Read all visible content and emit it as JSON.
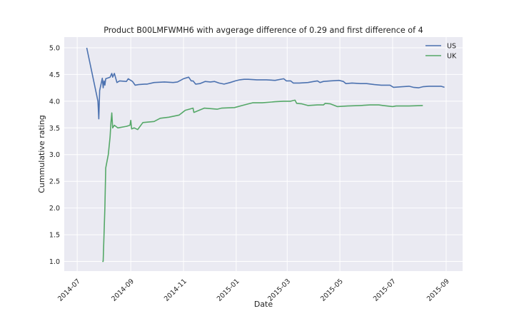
{
  "chart_data": {
    "type": "line",
    "title": "Product B00LMFWMH6 with avgerage difference of 0.29 and first difference of 4",
    "xlabel": "Date",
    "ylabel": "Cummulative rating",
    "xlim": [
      "2014-06-16",
      "2015-09-20"
    ],
    "ylim": [
      0.82,
      5.2
    ],
    "grid": true,
    "style": "seaborn-darkgrid",
    "legend_position": "top-right",
    "x_ticks": [
      "2014-07-01",
      "2014-09-01",
      "2014-11-01",
      "2015-01-01",
      "2015-03-01",
      "2015-05-01",
      "2015-07-01",
      "2015-09-01"
    ],
    "x_tick_labels": [
      "2014-07",
      "2014-09",
      "2014-11",
      "2015-01",
      "2015-03",
      "2015-05",
      "2015-07",
      "2015-09"
    ],
    "y_ticks": [
      1.0,
      1.5,
      2.0,
      2.5,
      3.0,
      3.5,
      4.0,
      4.5,
      5.0
    ],
    "y_tick_labels": [
      "1.0",
      "1.5",
      "2.0",
      "2.5",
      "3.0",
      "3.5",
      "4.0",
      "4.5",
      "5.0"
    ],
    "colors": {
      "background": "#eaeaf2",
      "grid": "#ffffff",
      "US": "#4c72b0",
      "UK": "#55a868"
    },
    "series": [
      {
        "name": "US",
        "color": "#4c72b0",
        "points": [
          [
            "2014-07-12",
            5.0
          ],
          [
            "2014-07-25",
            4.0
          ],
          [
            "2014-07-26",
            3.67
          ],
          [
            "2014-07-27",
            4.2
          ],
          [
            "2014-07-30",
            4.43
          ],
          [
            "2014-07-31",
            4.25
          ],
          [
            "2014-08-01",
            4.38
          ],
          [
            "2014-08-02",
            4.3
          ],
          [
            "2014-08-03",
            4.42
          ],
          [
            "2014-08-08",
            4.45
          ],
          [
            "2014-08-10",
            4.52
          ],
          [
            "2014-08-11",
            4.45
          ],
          [
            "2014-08-13",
            4.52
          ],
          [
            "2014-08-16",
            4.35
          ],
          [
            "2014-08-19",
            4.38
          ],
          [
            "2014-08-27",
            4.37
          ],
          [
            "2014-08-29",
            4.42
          ],
          [
            "2014-09-03",
            4.37
          ],
          [
            "2014-09-06",
            4.3
          ],
          [
            "2014-09-10",
            4.31
          ],
          [
            "2014-09-17",
            4.32
          ],
          [
            "2014-09-20",
            4.32
          ],
          [
            "2014-09-28",
            4.35
          ],
          [
            "2014-10-10",
            4.36
          ],
          [
            "2014-10-20",
            4.35
          ],
          [
            "2014-10-25",
            4.36
          ],
          [
            "2014-11-01",
            4.42
          ],
          [
            "2014-11-07",
            4.45
          ],
          [
            "2014-11-10",
            4.38
          ],
          [
            "2014-11-12",
            4.38
          ],
          [
            "2014-11-15",
            4.32
          ],
          [
            "2014-11-20",
            4.33
          ],
          [
            "2014-11-26",
            4.37
          ],
          [
            "2014-12-02",
            4.36
          ],
          [
            "2014-12-07",
            4.37
          ],
          [
            "2014-12-12",
            4.34
          ],
          [
            "2014-12-18",
            4.32
          ],
          [
            "2014-12-25",
            4.35
          ],
          [
            "2014-12-31",
            4.38
          ],
          [
            "2015-01-05",
            4.4
          ],
          [
            "2015-01-10",
            4.41
          ],
          [
            "2015-01-15",
            4.41
          ],
          [
            "2015-01-25",
            4.4
          ],
          [
            "2015-02-05",
            4.4
          ],
          [
            "2015-02-15",
            4.39
          ],
          [
            "2015-02-25",
            4.42
          ],
          [
            "2015-02-28",
            4.38
          ],
          [
            "2015-03-05",
            4.38
          ],
          [
            "2015-03-08",
            4.34
          ],
          [
            "2015-03-15",
            4.34
          ],
          [
            "2015-03-25",
            4.35
          ],
          [
            "2015-04-01",
            4.37
          ],
          [
            "2015-04-05",
            4.38
          ],
          [
            "2015-04-08",
            4.35
          ],
          [
            "2015-04-12",
            4.37
          ],
          [
            "2015-04-20",
            4.38
          ],
          [
            "2015-04-30",
            4.39
          ],
          [
            "2015-05-05",
            4.37
          ],
          [
            "2015-05-08",
            4.33
          ],
          [
            "2015-05-15",
            4.34
          ],
          [
            "2015-05-25",
            4.33
          ],
          [
            "2015-06-01",
            4.33
          ],
          [
            "2015-06-10",
            4.31
          ],
          [
            "2015-06-18",
            4.3
          ],
          [
            "2015-06-28",
            4.3
          ],
          [
            "2015-07-02",
            4.26
          ],
          [
            "2015-07-12",
            4.27
          ],
          [
            "2015-07-20",
            4.28
          ],
          [
            "2015-07-25",
            4.26
          ],
          [
            "2015-07-31",
            4.25
          ],
          [
            "2015-08-05",
            4.27
          ],
          [
            "2015-08-12",
            4.28
          ],
          [
            "2015-08-20",
            4.28
          ],
          [
            "2015-08-26",
            4.28
          ],
          [
            "2015-08-30",
            4.26
          ]
        ]
      },
      {
        "name": "UK",
        "color": "#55a868",
        "points": [
          [
            "2014-07-30",
            1.0
          ],
          [
            "2014-07-31",
            1.0
          ],
          [
            "2014-08-01",
            1.5
          ],
          [
            "2014-08-02",
            2.0
          ],
          [
            "2014-08-03",
            2.75
          ],
          [
            "2014-08-06",
            3.0
          ],
          [
            "2014-08-08",
            3.33
          ],
          [
            "2014-08-09",
            3.6
          ],
          [
            "2014-08-10",
            3.78
          ],
          [
            "2014-08-11",
            3.5
          ],
          [
            "2014-08-13",
            3.55
          ],
          [
            "2014-08-17",
            3.5
          ],
          [
            "2014-08-27",
            3.53
          ],
          [
            "2014-08-31",
            3.55
          ],
          [
            "2014-09-01",
            3.64
          ],
          [
            "2014-09-02",
            3.48
          ],
          [
            "2014-09-05",
            3.5
          ],
          [
            "2014-09-09",
            3.47
          ],
          [
            "2014-09-15",
            3.6
          ],
          [
            "2014-09-28",
            3.62
          ],
          [
            "2014-10-05",
            3.68
          ],
          [
            "2014-10-15",
            3.7
          ],
          [
            "2014-10-27",
            3.74
          ],
          [
            "2014-11-03",
            3.83
          ],
          [
            "2014-11-12",
            3.87
          ],
          [
            "2014-11-13",
            3.79
          ],
          [
            "2014-11-25",
            3.87
          ],
          [
            "2014-12-10",
            3.85
          ],
          [
            "2014-12-15",
            3.87
          ],
          [
            "2014-12-30",
            3.88
          ],
          [
            "2015-01-08",
            3.92
          ],
          [
            "2015-01-15",
            3.95
          ],
          [
            "2015-01-20",
            3.97
          ],
          [
            "2015-01-31",
            3.97
          ],
          [
            "2015-02-15",
            3.99
          ],
          [
            "2015-02-25",
            4.0
          ],
          [
            "2015-03-05",
            4.0
          ],
          [
            "2015-03-10",
            4.02
          ],
          [
            "2015-03-12",
            3.96
          ],
          [
            "2015-03-18",
            3.95
          ],
          [
            "2015-03-25",
            3.92
          ],
          [
            "2015-04-05",
            3.93
          ],
          [
            "2015-04-12",
            3.93
          ],
          [
            "2015-04-14",
            3.96
          ],
          [
            "2015-04-20",
            3.95
          ],
          [
            "2015-04-28",
            3.9
          ],
          [
            "2015-05-10",
            3.91
          ],
          [
            "2015-05-25",
            3.92
          ],
          [
            "2015-06-05",
            3.93
          ],
          [
            "2015-06-15",
            3.93
          ],
          [
            "2015-06-20",
            3.92
          ],
          [
            "2015-07-01",
            3.9
          ],
          [
            "2015-07-05",
            3.91
          ],
          [
            "2015-07-20",
            3.91
          ],
          [
            "2015-08-05",
            3.92
          ]
        ]
      }
    ]
  }
}
